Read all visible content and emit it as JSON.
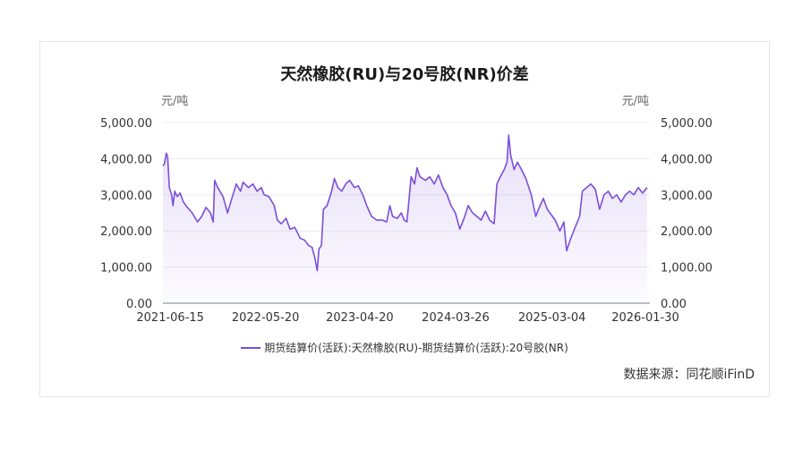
{
  "chart_data": {
    "type": "area",
    "title": "天然橡胶(RU)与20号胶(NR)价差",
    "y_unit_left": "元/吨",
    "y_unit_right": "元/吨",
    "ylim": [
      0,
      5000
    ],
    "y_ticks": [
      "0.00",
      "1,000.00",
      "2,000.00",
      "3,000.00",
      "4,000.00",
      "5,000.00"
    ],
    "x_range": [
      "2021-05-20",
      "2026-02-15"
    ],
    "x_ticks": [
      "2021-06-15",
      "2022-05-20",
      "2023-04-20",
      "2024-03-26",
      "2025-03-04",
      "2026-01-30"
    ],
    "grid": true,
    "legend_position": "bottom",
    "series": [
      {
        "name": "期货结算价(活跃):天然橡胶(RU)-期货结算价(活跃):20号胶(NR)",
        "color": "#7a4fd9",
        "points": [
          [
            "2021-05-20",
            3800
          ],
          [
            "2021-05-25",
            3850
          ],
          [
            "2021-06-01",
            4150
          ],
          [
            "2021-06-06",
            4050
          ],
          [
            "2021-06-12",
            3200
          ],
          [
            "2021-06-20",
            3000
          ],
          [
            "2021-06-25",
            2700
          ],
          [
            "2021-07-01",
            3100
          ],
          [
            "2021-07-10",
            2950
          ],
          [
            "2021-07-20",
            3050
          ],
          [
            "2021-08-01",
            2800
          ],
          [
            "2021-08-15",
            2650
          ],
          [
            "2021-09-01",
            2500
          ],
          [
            "2021-09-20",
            2250
          ],
          [
            "2021-10-05",
            2400
          ],
          [
            "2021-10-20",
            2650
          ],
          [
            "2021-11-05",
            2500
          ],
          [
            "2021-11-15",
            2250
          ],
          [
            "2021-11-20",
            3400
          ],
          [
            "2021-12-01",
            3200
          ],
          [
            "2021-12-20",
            2950
          ],
          [
            "2022-01-05",
            2500
          ],
          [
            "2022-01-20",
            2900
          ],
          [
            "2022-02-05",
            3300
          ],
          [
            "2022-02-20",
            3100
          ],
          [
            "2022-03-01",
            3350
          ],
          [
            "2022-03-20",
            3200
          ],
          [
            "2022-04-05",
            3300
          ],
          [
            "2022-04-20",
            3100
          ],
          [
            "2022-05-05",
            3200
          ],
          [
            "2022-05-15",
            3000
          ],
          [
            "2022-06-01",
            2950
          ],
          [
            "2022-06-20",
            2700
          ],
          [
            "2022-07-01",
            2300
          ],
          [
            "2022-07-15",
            2200
          ],
          [
            "2022-08-01",
            2350
          ],
          [
            "2022-08-15",
            2050
          ],
          [
            "2022-09-01",
            2100
          ],
          [
            "2022-09-20",
            1800
          ],
          [
            "2022-10-05",
            1750
          ],
          [
            "2022-10-20",
            1600
          ],
          [
            "2022-11-01",
            1550
          ],
          [
            "2022-11-10",
            1300
          ],
          [
            "2022-11-20",
            900
          ],
          [
            "2022-11-26",
            1500
          ],
          [
            "2022-12-05",
            1600
          ],
          [
            "2022-12-12",
            2600
          ],
          [
            "2022-12-25",
            2700
          ],
          [
            "2023-01-10",
            3100
          ],
          [
            "2023-01-20",
            3450
          ],
          [
            "2023-02-01",
            3200
          ],
          [
            "2023-02-15",
            3100
          ],
          [
            "2023-03-01",
            3300
          ],
          [
            "2023-03-15",
            3400
          ],
          [
            "2023-04-01",
            3200
          ],
          [
            "2023-04-15",
            3250
          ],
          [
            "2023-05-01",
            3000
          ],
          [
            "2023-05-15",
            2700
          ],
          [
            "2023-06-01",
            2400
          ],
          [
            "2023-06-20",
            2300
          ],
          [
            "2023-07-10",
            2300
          ],
          [
            "2023-07-25",
            2250
          ],
          [
            "2023-08-05",
            2700
          ],
          [
            "2023-08-15",
            2400
          ],
          [
            "2023-09-01",
            2350
          ],
          [
            "2023-09-15",
            2500
          ],
          [
            "2023-09-25",
            2300
          ],
          [
            "2023-10-05",
            2250
          ],
          [
            "2023-10-20",
            3500
          ],
          [
            "2023-11-01",
            3300
          ],
          [
            "2023-11-10",
            3750
          ],
          [
            "2023-11-20",
            3500
          ],
          [
            "2023-12-10",
            3400
          ],
          [
            "2023-12-25",
            3500
          ],
          [
            "2024-01-10",
            3300
          ],
          [
            "2024-01-25",
            3550
          ],
          [
            "2024-02-10",
            3200
          ],
          [
            "2024-02-25",
            3000
          ],
          [
            "2024-03-10",
            2700
          ],
          [
            "2024-03-25",
            2500
          ],
          [
            "2024-04-10",
            2050
          ],
          [
            "2024-04-25",
            2350
          ],
          [
            "2024-05-10",
            2700
          ],
          [
            "2024-05-25",
            2500
          ],
          [
            "2024-06-10",
            2400
          ],
          [
            "2024-06-25",
            2300
          ],
          [
            "2024-07-10",
            2550
          ],
          [
            "2024-07-25",
            2300
          ],
          [
            "2024-08-10",
            2200
          ],
          [
            "2024-08-20",
            3300
          ],
          [
            "2024-09-01",
            3500
          ],
          [
            "2024-09-15",
            3700
          ],
          [
            "2024-09-25",
            3900
          ],
          [
            "2024-10-01",
            4650
          ],
          [
            "2024-10-08",
            4100
          ],
          [
            "2024-10-20",
            3700
          ],
          [
            "2024-11-01",
            3900
          ],
          [
            "2024-11-15",
            3700
          ],
          [
            "2024-12-01",
            3450
          ],
          [
            "2024-12-20",
            3000
          ],
          [
            "2025-01-05",
            2400
          ],
          [
            "2025-01-15",
            2600
          ],
          [
            "2025-02-01",
            2900
          ],
          [
            "2025-02-15",
            2600
          ],
          [
            "2025-03-01",
            2450
          ],
          [
            "2025-03-15",
            2300
          ],
          [
            "2025-04-01",
            2000
          ],
          [
            "2025-04-15",
            2250
          ],
          [
            "2025-04-25",
            1450
          ],
          [
            "2025-05-10",
            1800
          ],
          [
            "2025-05-25",
            2100
          ],
          [
            "2025-06-10",
            2400
          ],
          [
            "2025-06-20",
            3100
          ],
          [
            "2025-07-05",
            3200
          ],
          [
            "2025-07-20",
            3300
          ],
          [
            "2025-08-05",
            3150
          ],
          [
            "2025-08-20",
            2600
          ],
          [
            "2025-09-05",
            3000
          ],
          [
            "2025-09-20",
            3100
          ],
          [
            "2025-10-05",
            2900
          ],
          [
            "2025-10-20",
            3000
          ],
          [
            "2025-11-05",
            2800
          ],
          [
            "2025-11-20",
            3000
          ],
          [
            "2025-12-05",
            3100
          ],
          [
            "2025-12-20",
            3000
          ],
          [
            "2026-01-05",
            3200
          ],
          [
            "2026-01-20",
            3050
          ],
          [
            "2026-02-05",
            3200
          ]
        ]
      }
    ]
  },
  "source": "数据来源：同花顺iFinD"
}
